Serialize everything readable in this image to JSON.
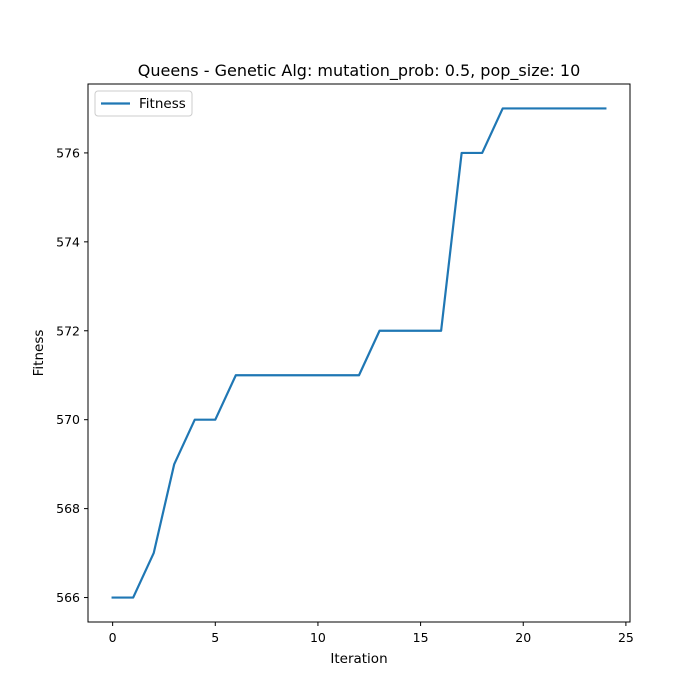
{
  "chart_data": {
    "type": "line",
    "title": "Queens - Genetic Alg: mutation_prob: 0.5, pop_size: 10",
    "xlabel": "Iteration",
    "ylabel": "Fitness",
    "xlim": [
      -1.2,
      25.2
    ],
    "ylim": [
      565.45,
      577.55
    ],
    "xticks": [
      0,
      5,
      10,
      15,
      20,
      25
    ],
    "yticks": [
      566,
      568,
      570,
      572,
      574,
      576
    ],
    "xtick_labels": [
      "0",
      "5",
      "10",
      "15",
      "20",
      "25"
    ],
    "ytick_labels": [
      "566",
      "568",
      "570",
      "572",
      "574",
      "576"
    ],
    "grid": false,
    "legend": {
      "placement": "upper-left",
      "entries": [
        "Fitness"
      ]
    },
    "series": [
      {
        "name": "Fitness",
        "color": "#1f77b4",
        "x": [
          0,
          1,
          2,
          3,
          4,
          5,
          6,
          7,
          8,
          9,
          10,
          11,
          12,
          13,
          14,
          15,
          16,
          17,
          18,
          19,
          20,
          21,
          22,
          23,
          24
        ],
        "y": [
          566,
          566,
          567,
          569,
          570,
          570,
          571,
          571,
          571,
          571,
          571,
          571,
          571,
          572,
          572,
          572,
          572,
          576,
          576,
          577,
          577,
          577,
          577,
          577,
          577
        ]
      }
    ]
  }
}
